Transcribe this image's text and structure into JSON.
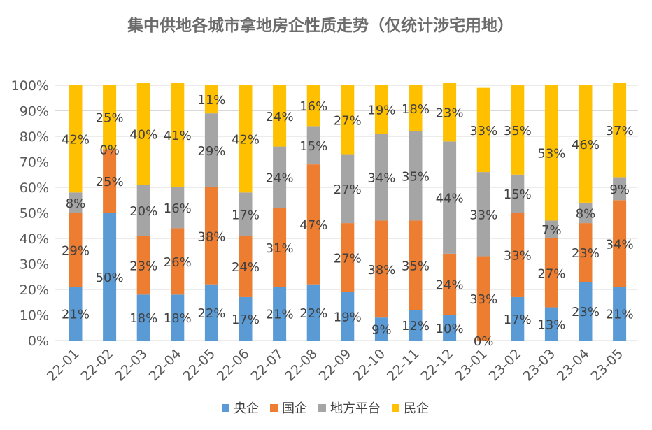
{
  "chart_data": {
    "type": "bar",
    "stacked": true,
    "title": "集中供地各城市拿地房企性质走势（仅统计涉宅用地）",
    "categories": [
      "22-01",
      "22-02",
      "22-03",
      "22-04",
      "22-05",
      "22-06",
      "22-07",
      "22-08",
      "22-09",
      "22-10",
      "22-11",
      "22-12",
      "23-01",
      "23-02",
      "23-03",
      "23-04",
      "23-05"
    ],
    "series": [
      {
        "name": "央企",
        "color": "#5b9bd5",
        "values": [
          21,
          50,
          18,
          18,
          22,
          17,
          21,
          22,
          19,
          9,
          12,
          10,
          0,
          17,
          13,
          23,
          21
        ]
      },
      {
        "name": "国企",
        "color": "#ed7d31",
        "values": [
          29,
          25,
          23,
          26,
          38,
          24,
          31,
          47,
          27,
          38,
          35,
          24,
          33,
          33,
          27,
          23,
          34
        ]
      },
      {
        "name": "地方平台",
        "color": "#a5a5a5",
        "values": [
          8,
          0,
          20,
          16,
          29,
          17,
          24,
          15,
          27,
          34,
          35,
          44,
          33,
          15,
          7,
          8,
          9
        ]
      },
      {
        "name": "民企",
        "color": "#ffc000",
        "values": [
          42,
          25,
          40,
          41,
          11,
          42,
          24,
          16,
          27,
          19,
          18,
          23,
          33,
          35,
          53,
          46,
          37
        ]
      }
    ],
    "ylim": [
      0,
      100
    ],
    "yticks": [
      "0%",
      "10%",
      "20%",
      "30%",
      "40%",
      "50%",
      "60%",
      "70%",
      "80%",
      "90%",
      "100%"
    ],
    "grid": true,
    "legend_position": "bottom",
    "value_suffix": "%"
  }
}
